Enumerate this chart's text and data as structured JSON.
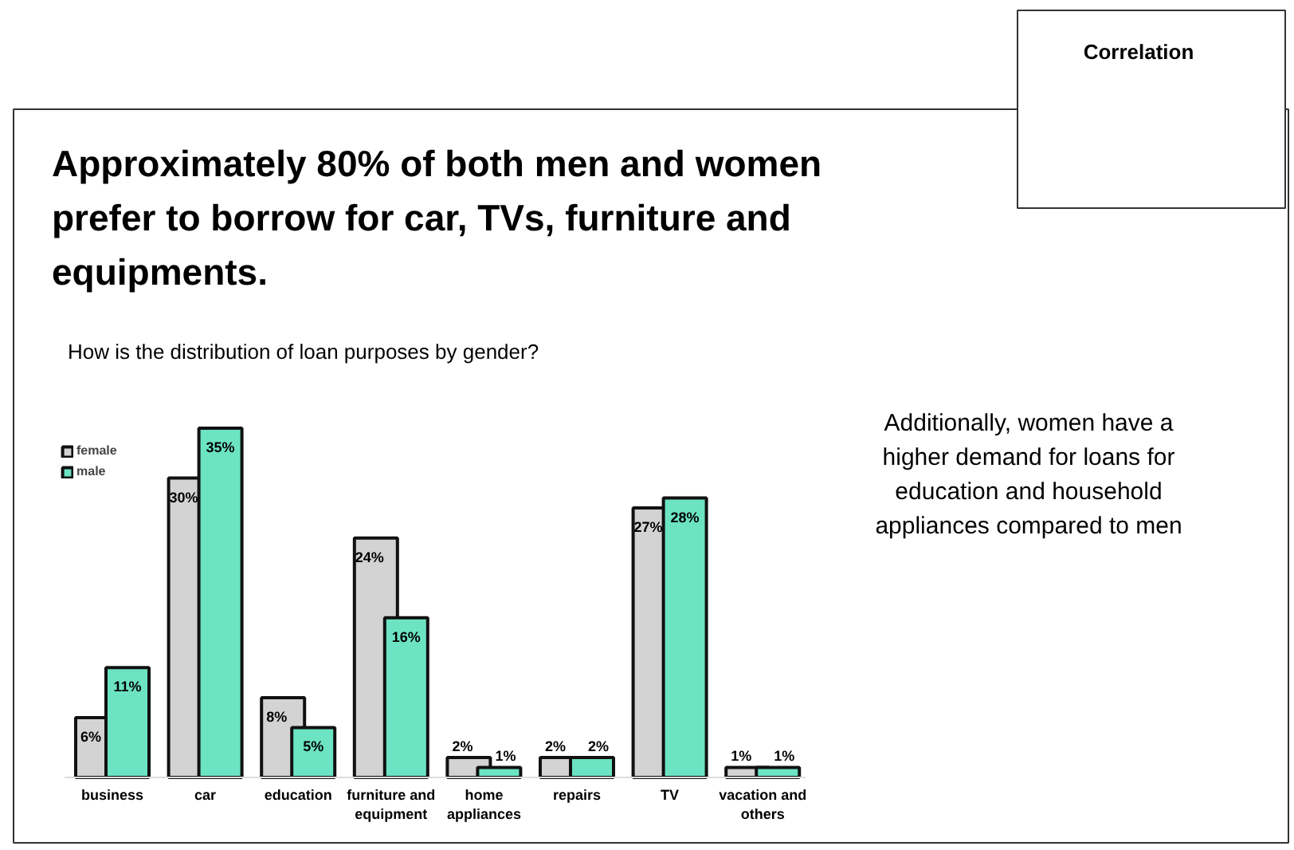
{
  "chart_data": {
    "type": "bar",
    "title": "Approximately 80% of both men and women prefer to borrow for car, TVs, furniture and equipments.",
    "subtitle": "How is the distribution of loan purposes by gender?",
    "categories": [
      "business",
      "car",
      "education",
      "furniture and equipment",
      "home appliances",
      "repairs",
      "TV",
      "vacation and others"
    ],
    "series": [
      {
        "name": "female",
        "color": "#d3d3d3",
        "values": [
          6,
          30,
          8,
          24,
          2,
          2,
          27,
          1
        ],
        "value_labels": [
          "6%",
          "30%",
          "8%",
          "24%",
          "2%",
          "2%",
          "27%",
          "1%"
        ]
      },
      {
        "name": "male",
        "color": "#6ce4c4",
        "values": [
          11,
          35,
          5,
          16,
          1,
          2,
          28,
          1
        ],
        "value_labels": [
          "11%",
          "35%",
          "5%",
          "16%",
          "1%",
          "2%",
          "28%",
          "1%"
        ]
      }
    ],
    "legend": "top left",
    "annotations": [
      "Additionally, women have a higher demand for loans for education and household appliances compared to men",
      "Correlation"
    ]
  }
}
